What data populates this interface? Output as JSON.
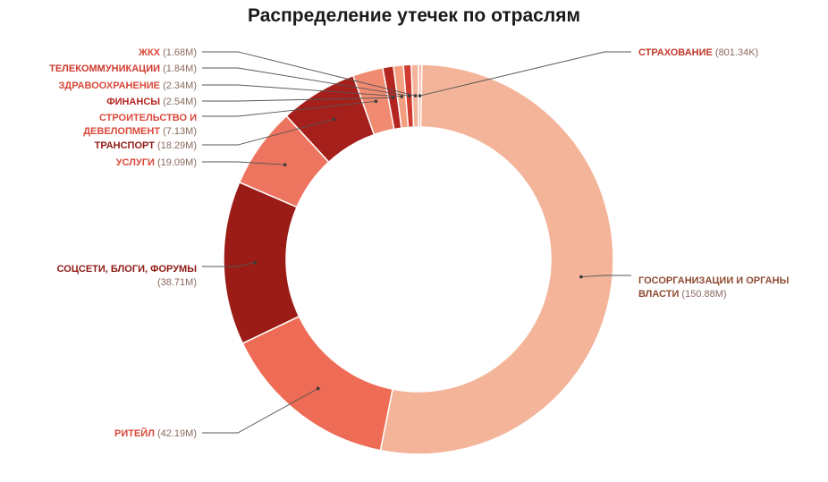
{
  "chart_data": {
    "type": "pie",
    "donut": true,
    "title": "Распределение утечек по отраслям",
    "slices": [
      {
        "name": "СТРАХОВАНИЕ",
        "value_label": "801.34K",
        "value": 0.80134,
        "color": "#f2b3a0",
        "label_color": "#c0392b"
      },
      {
        "name": "ГОСОРГАНИЗАЦИИ И ОРГАНЫ ВЛАСТИ",
        "value_label": "150.88M",
        "value": 150.88,
        "color": "#f4b49a",
        "label_color": "#8f4a32"
      },
      {
        "name": "РИТЕЙЛ",
        "value_label": "42.19M",
        "value": 42.19,
        "color": "#ee6b55",
        "label_color": "#d9493a"
      },
      {
        "name": "СОЦСЕТИ, БЛОГИ, ФОРУМЫ",
        "value_label": "38.71M",
        "value": 38.71,
        "color": "#9b1c16",
        "label_color": "#8e1a14"
      },
      {
        "name": "УСЛУГИ",
        "value_label": "19.09M",
        "value": 19.09,
        "color": "#ed7560",
        "label_color": "#d9493a"
      },
      {
        "name": "ТРАНСПОРТ",
        "value_label": "18.29M",
        "value": 18.29,
        "color": "#a51f1b",
        "label_color": "#8e1a14"
      },
      {
        "name": "СТРОИТЕЛЬСТВО И ДЕВЕЛОПМЕНТ",
        "value_label": "7.13M",
        "value": 7.13,
        "color": "#f08a70",
        "label_color": "#d9493a"
      },
      {
        "name": "ФИНАНСЫ",
        "value_label": "2.54M",
        "value": 2.54,
        "color": "#b52520",
        "label_color": "#b52520"
      },
      {
        "name": "ЗДРАВООХРАНЕНИЕ",
        "value_label": "2.34M",
        "value": 2.34,
        "color": "#f4a080",
        "label_color": "#d9493a"
      },
      {
        "name": "ТЕЛЕКОММУНИКАЦИИ",
        "value_label": "1.84M",
        "value": 1.84,
        "color": "#d13a2e",
        "label_color": "#d13a2e"
      },
      {
        "name": "ЖКХ",
        "value_label": "1.68M",
        "value": 1.68,
        "color": "#f4b49a",
        "label_color": "#d9493a"
      }
    ]
  }
}
